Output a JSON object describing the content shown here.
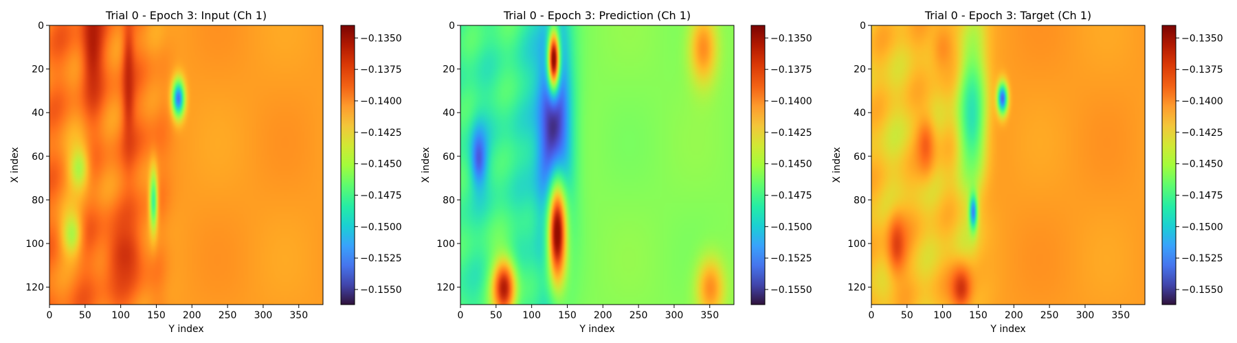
{
  "colormap": "turbo",
  "colorbar": {
    "vmin": -0.1562,
    "vmax": -0.134,
    "tick_values": [
      -0.135,
      -0.1375,
      -0.14,
      -0.1425,
      -0.145,
      -0.1475,
      -0.15,
      -0.1525,
      -0.155
    ],
    "tick_labels": [
      "−0.1350",
      "−0.1375",
      "−0.1400",
      "−0.1425",
      "−0.1450",
      "−0.1475",
      "−0.1500",
      "−0.1525",
      "−0.1550"
    ]
  },
  "chart_data": [
    {
      "type": "heatmap",
      "title": "Trial 0 - Epoch 3: Input (Ch 1)",
      "xlabel": "Y index",
      "ylabel": "X index",
      "x_range": [
        0,
        384
      ],
      "y_range": [
        0,
        128
      ],
      "x_ticks": [
        "0",
        "50",
        "100",
        "150",
        "200",
        "250",
        "300",
        "350"
      ],
      "y_ticks": [
        "0",
        "20",
        "40",
        "60",
        "80",
        "100",
        "120"
      ],
      "field": {
        "background": -0.1405,
        "front_y_index": 160,
        "left_level": -0.1395,
        "features": [
          {
            "x": 60,
            "y": 4,
            "value": -0.136,
            "sx": 10,
            "sy": 24
          },
          {
            "x": 110,
            "y": 25,
            "value": -0.1365,
            "sx": 6,
            "sy": 22
          },
          {
            "x": 105,
            "y": 105,
            "value": -0.137,
            "sx": 18,
            "sy": 12
          },
          {
            "x": 180,
            "y": 33,
            "value": -0.153,
            "sx": 6,
            "sy": 6
          },
          {
            "x": 145,
            "y": 80,
            "value": -0.148,
            "sx": 4,
            "sy": 10
          },
          {
            "x": 40,
            "y": 65,
            "value": -0.1445,
            "sx": 10,
            "sy": 8
          },
          {
            "x": 30,
            "y": 95,
            "value": -0.1445,
            "sx": 10,
            "sy": 8
          }
        ]
      }
    },
    {
      "type": "heatmap",
      "title": "Trial 0 - Epoch 3: Prediction (Ch 1)",
      "xlabel": "Y index",
      "ylabel": "X index",
      "x_range": [
        0,
        384
      ],
      "y_range": [
        0,
        128
      ],
      "x_ticks": [
        "0",
        "50",
        "100",
        "150",
        "200",
        "250",
        "300",
        "350"
      ],
      "y_ticks": [
        "0",
        "20",
        "40",
        "60",
        "80",
        "100",
        "120"
      ],
      "field": {
        "background": -0.1455,
        "front_y_index": 140,
        "left_level": -0.148,
        "features": [
          {
            "x": 130,
            "y": 50,
            "value": -0.156,
            "sx": 18,
            "sy": 40
          },
          {
            "x": 135,
            "y": 95,
            "value": -0.1345,
            "sx": 10,
            "sy": 18
          },
          {
            "x": 130,
            "y": 15,
            "value": -0.1345,
            "sx": 6,
            "sy": 10
          },
          {
            "x": 60,
            "y": 120,
            "value": -0.136,
            "sx": 12,
            "sy": 10
          },
          {
            "x": 340,
            "y": 10,
            "value": -0.14,
            "sx": 14,
            "sy": 12
          },
          {
            "x": 350,
            "y": 120,
            "value": -0.14,
            "sx": 14,
            "sy": 10
          },
          {
            "x": 25,
            "y": 60,
            "value": -0.154,
            "sx": 8,
            "sy": 10
          }
        ]
      }
    },
    {
      "type": "heatmap",
      "title": "Trial 0 - Epoch 3: Target (Ch 1)",
      "xlabel": "Y index",
      "ylabel": "X index",
      "x_range": [
        0,
        384
      ],
      "y_range": [
        0,
        128
      ],
      "x_ticks": [
        "0",
        "50",
        "100",
        "150",
        "200",
        "250",
        "300",
        "350"
      ],
      "y_ticks": [
        "0",
        "20",
        "40",
        "60",
        "80",
        "100",
        "120"
      ],
      "field": {
        "background": -0.1405,
        "front_y_index": 155,
        "left_level": -0.142,
        "features": [
          {
            "x": 140,
            "y": 40,
            "value": -0.149,
            "sx": 14,
            "sy": 22
          },
          {
            "x": 183,
            "y": 33,
            "value": -0.1535,
            "sx": 5,
            "sy": 5
          },
          {
            "x": 142,
            "y": 85,
            "value": -0.1525,
            "sx": 4,
            "sy": 6
          },
          {
            "x": 35,
            "y": 100,
            "value": -0.1375,
            "sx": 10,
            "sy": 10
          },
          {
            "x": 125,
            "y": 120,
            "value": -0.137,
            "sx": 12,
            "sy": 8
          },
          {
            "x": 75,
            "y": 55,
            "value": -0.1385,
            "sx": 10,
            "sy": 10
          },
          {
            "x": 100,
            "y": 10,
            "value": -0.14,
            "sx": 14,
            "sy": 10
          }
        ]
      }
    }
  ]
}
